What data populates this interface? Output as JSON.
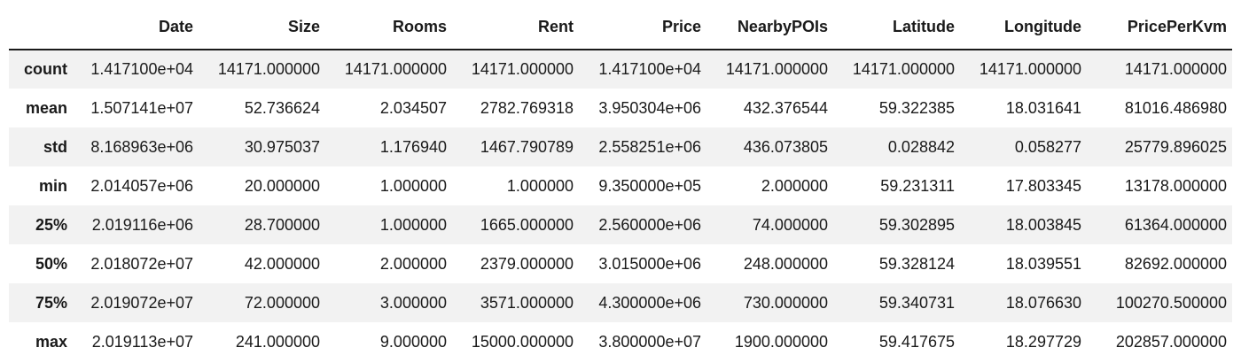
{
  "table": {
    "columns": [
      "",
      "Date",
      "Size",
      "Rooms",
      "Rent",
      "Price",
      "NearbyPOIs",
      "Latitude",
      "Longitude",
      "PricePerKvm"
    ],
    "rows": [
      {
        "label": "count",
        "cells": [
          "1.417100e+04",
          "14171.000000",
          "14171.000000",
          "14171.000000",
          "1.417100e+04",
          "14171.000000",
          "14171.000000",
          "14171.000000",
          "14171.000000"
        ]
      },
      {
        "label": "mean",
        "cells": [
          "1.507141e+07",
          "52.736624",
          "2.034507",
          "2782.769318",
          "3.950304e+06",
          "432.376544",
          "59.322385",
          "18.031641",
          "81016.486980"
        ]
      },
      {
        "label": "std",
        "cells": [
          "8.168963e+06",
          "30.975037",
          "1.176940",
          "1467.790789",
          "2.558251e+06",
          "436.073805",
          "0.028842",
          "0.058277",
          "25779.896025"
        ]
      },
      {
        "label": "min",
        "cells": [
          "2.014057e+06",
          "20.000000",
          "1.000000",
          "1.000000",
          "9.350000e+05",
          "2.000000",
          "59.231311",
          "17.803345",
          "13178.000000"
        ]
      },
      {
        "label": "25%",
        "cells": [
          "2.019116e+06",
          "28.700000",
          "1.000000",
          "1665.000000",
          "2.560000e+06",
          "74.000000",
          "59.302895",
          "18.003845",
          "61364.000000"
        ]
      },
      {
        "label": "50%",
        "cells": [
          "2.018072e+07",
          "42.000000",
          "2.000000",
          "2379.000000",
          "3.015000e+06",
          "248.000000",
          "59.328124",
          "18.039551",
          "82692.000000"
        ]
      },
      {
        "label": "75%",
        "cells": [
          "2.019072e+07",
          "72.000000",
          "3.000000",
          "3571.000000",
          "4.300000e+06",
          "730.000000",
          "59.340731",
          "18.076630",
          "100270.500000"
        ]
      },
      {
        "label": "max",
        "cells": [
          "2.019113e+07",
          "241.000000",
          "9.000000",
          "15000.000000",
          "3.800000e+07",
          "1900.000000",
          "59.417675",
          "18.297729",
          "202857.000000"
        ]
      }
    ]
  }
}
